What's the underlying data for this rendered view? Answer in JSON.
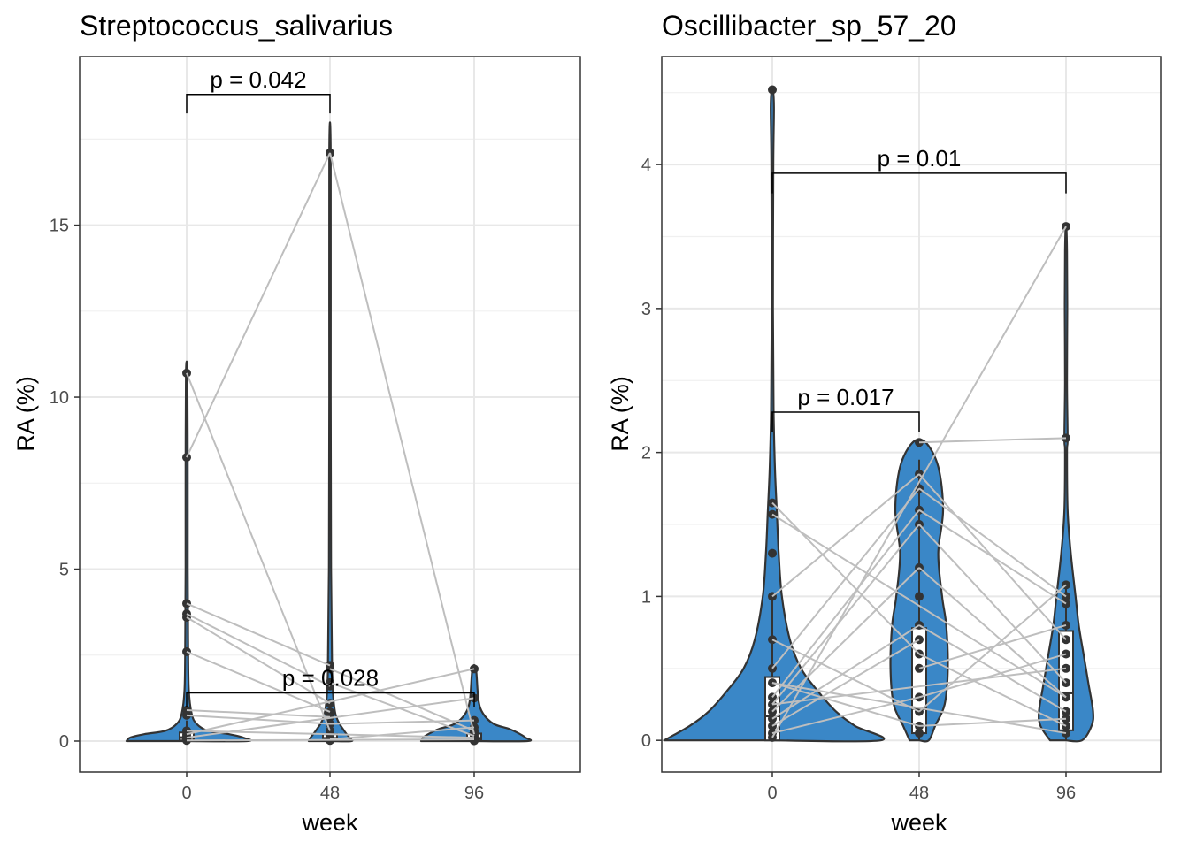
{
  "chart_data": [
    {
      "type": "violin",
      "title": "Streptococcus_salivarius",
      "xlabel": "week",
      "ylabel": "RA (%)",
      "categories": [
        "0",
        "48",
        "96"
      ],
      "xticks": [
        "0",
        "48",
        "96"
      ],
      "yticks": [
        "0",
        "5",
        "10",
        "15"
      ],
      "ylim": [
        -0.9,
        19.9
      ],
      "grid": true,
      "fill_color": "#3A87C7",
      "line_color": "#BEBEBE",
      "violin_widths": {
        "0": [
          [
            0.0,
            1.7
          ],
          [
            0.1,
            1.6
          ],
          [
            0.2,
            1.2
          ],
          [
            0.3,
            0.6
          ],
          [
            0.5,
            0.28
          ],
          [
            0.8,
            0.14
          ],
          [
            1.5,
            0.06
          ],
          [
            3,
            0.04
          ],
          [
            5,
            0.03
          ],
          [
            8,
            0.03
          ],
          [
            10.7,
            0.02
          ]
        ],
        "48": [
          [
            0.0,
            0.6
          ],
          [
            0.1,
            0.55
          ],
          [
            0.3,
            0.4
          ],
          [
            0.6,
            0.22
          ],
          [
            1.0,
            0.12
          ],
          [
            2.0,
            0.06
          ],
          [
            5,
            0.03
          ],
          [
            10,
            0.02
          ],
          [
            17.1,
            0.02
          ]
        ],
        "96": [
          [
            0.0,
            1.5
          ],
          [
            0.1,
            1.45
          ],
          [
            0.2,
            1.3
          ],
          [
            0.35,
            1.0
          ],
          [
            0.5,
            0.55
          ],
          [
            0.8,
            0.25
          ],
          [
            1.2,
            0.12
          ],
          [
            2.1,
            0.05
          ]
        ]
      },
      "points": {
        "0": [
          10.7,
          8.25,
          4.0,
          3.7,
          3.6,
          2.6,
          0.9,
          0.75,
          0.3,
          0.2,
          0.15,
          0.1,
          0.05,
          0.02
        ],
        "48": [
          17.1,
          2.2,
          2.1,
          1.7,
          1.6,
          1.1,
          0.85,
          0.7,
          0.5,
          0.3,
          0.2,
          0.1,
          0.05,
          0.02
        ],
        "96": [
          2.1,
          1.25,
          0.6,
          0.4,
          0.3,
          0.25,
          0.2,
          0.15,
          0.1,
          0.08,
          0.05,
          0.03,
          0.02,
          0.01
        ]
      },
      "paired_lines": [
        [
          10.7,
          0.3
        ],
        [
          8.25,
          17.1
        ],
        [
          4.0,
          2.2
        ],
        [
          3.7,
          1.6
        ],
        [
          3.6,
          1.1
        ],
        [
          2.6,
          0.85
        ],
        [
          0.9,
          0.7
        ],
        [
          0.75,
          0.5
        ],
        [
          17.1,
          0.2
        ],
        [
          2.1,
          0.3
        ],
        [
          1.7,
          0.15
        ],
        [
          0.5,
          0.6
        ],
        [
          0.2,
          2.1
        ],
        [
          0.1,
          1.25
        ],
        [
          0.3,
          0.1
        ],
        [
          0.05,
          0.4
        ],
        [
          0.02,
          0.05
        ]
      ],
      "paired_lines_pairs": [
        [
          "0",
          "48"
        ],
        [
          "0",
          "48"
        ],
        [
          "0",
          "48"
        ],
        [
          "0",
          "48"
        ],
        [
          "0",
          "48"
        ],
        [
          "0",
          "48"
        ],
        [
          "0",
          "48"
        ],
        [
          "0",
          "48"
        ],
        [
          "48",
          "96"
        ],
        [
          "48",
          "96"
        ],
        [
          "48",
          "96"
        ],
        [
          "48",
          "96"
        ],
        [
          "0",
          "96"
        ],
        [
          "0",
          "96"
        ],
        [
          "0",
          "96"
        ],
        [
          "48",
          "96"
        ],
        [
          "0",
          "96"
        ]
      ],
      "boxes": {
        "0": {
          "q1": 0.02,
          "median": 0.1,
          "q3": 0.25,
          "lower": 0,
          "upper": 0.6
        },
        "48": {
          "q1": 0.02,
          "median": 0.08,
          "q3": 0.2,
          "lower": 0,
          "upper": 0.5
        },
        "96": {
          "q1": 0.02,
          "median": 0.08,
          "q3": 0.22,
          "lower": 0,
          "upper": 0.5
        }
      },
      "comparisons": [
        {
          "groups": [
            "0",
            "48"
          ],
          "label": "p = 0.042",
          "y": 18.8,
          "tip": 0.55
        },
        {
          "groups": [
            "0",
            "96"
          ],
          "label": "p = 0.028",
          "y": 1.4,
          "tip": 0.4
        }
      ]
    },
    {
      "type": "violin",
      "title": "Oscillibacter_sp_57_20",
      "xlabel": "week",
      "ylabel": "RA (%)",
      "categories": [
        "0",
        "48",
        "96"
      ],
      "xticks": [
        "0",
        "48",
        "96"
      ],
      "yticks": [
        "0",
        "1",
        "2",
        "3",
        "4"
      ],
      "ylim": [
        -0.22,
        4.75
      ],
      "grid": true,
      "fill_color": "#3A87C7",
      "line_color": "#BEBEBE",
      "violin_widths": {
        "0": [
          [
            0.0,
            3.4
          ],
          [
            0.1,
            2.6
          ],
          [
            0.2,
            2.0
          ],
          [
            0.35,
            1.4
          ],
          [
            0.5,
            0.9
          ],
          [
            0.7,
            0.55
          ],
          [
            1.0,
            0.3
          ],
          [
            1.3,
            0.2
          ],
          [
            1.6,
            0.14
          ],
          [
            1.9,
            0.08
          ],
          [
            2.3,
            0.04
          ],
          [
            3.0,
            0.02
          ],
          [
            4.0,
            0.03
          ],
          [
            4.4,
            0.05
          ],
          [
            4.52,
            0.02
          ]
        ],
        "48": [
          [
            0.0,
            0.3
          ],
          [
            0.1,
            0.5
          ],
          [
            0.25,
            0.8
          ],
          [
            0.5,
            0.9
          ],
          [
            0.8,
            0.85
          ],
          [
            1.0,
            0.72
          ],
          [
            1.3,
            0.6
          ],
          [
            1.6,
            0.75
          ],
          [
            1.9,
            0.6
          ],
          [
            2.07,
            0.2
          ]
        ],
        "96": [
          [
            0.0,
            0.5
          ],
          [
            0.1,
            0.8
          ],
          [
            0.2,
            0.85
          ],
          [
            0.4,
            0.7
          ],
          [
            0.6,
            0.55
          ],
          [
            0.8,
            0.4
          ],
          [
            1.0,
            0.3
          ],
          [
            1.3,
            0.15
          ],
          [
            1.6,
            0.05
          ],
          [
            2.0,
            0.03
          ],
          [
            2.1,
            0.05
          ],
          [
            2.5,
            0.03
          ],
          [
            3.0,
            0.04
          ],
          [
            3.4,
            0.03
          ],
          [
            3.57,
            0.01
          ]
        ]
      },
      "points": {
        "0": [
          4.52,
          1.65,
          1.57,
          1.3,
          1.0,
          0.7,
          0.5,
          0.4,
          0.3,
          0.25,
          0.2,
          0.15,
          0.1,
          0.05,
          0.02
        ],
        "48": [
          2.07,
          1.85,
          1.75,
          1.6,
          1.5,
          1.2,
          1.0,
          0.8,
          0.7,
          0.6,
          0.5,
          0.3,
          0.2,
          0.1,
          0.05
        ],
        "96": [
          3.57,
          2.1,
          1.08,
          1.0,
          0.95,
          0.8,
          0.7,
          0.6,
          0.5,
          0.4,
          0.3,
          0.2,
          0.15,
          0.1,
          0.05
        ]
      },
      "paired_lines": [
        [
          1.0,
          1.85
        ],
        [
          0.5,
          1.75
        ],
        [
          0.3,
          1.6
        ],
        [
          0.25,
          1.5
        ],
        [
          0.2,
          1.2
        ],
        [
          0.15,
          0.8
        ],
        [
          0.1,
          0.7
        ],
        [
          0.05,
          0.3
        ],
        [
          0.7,
          0.2
        ],
        [
          0.4,
          0.1
        ],
        [
          1.65,
          0.6
        ],
        [
          2.07,
          2.1
        ],
        [
          1.85,
          0.7
        ],
        [
          1.75,
          1.0
        ],
        [
          1.6,
          0.95
        ],
        [
          1.5,
          0.4
        ],
        [
          1.2,
          0.3
        ],
        [
          0.8,
          0.2
        ],
        [
          0.6,
          0.1
        ],
        [
          0.5,
          0.8
        ],
        [
          0.3,
          0.6
        ],
        [
          0.2,
          1.08
        ],
        [
          0.1,
          0.15
        ],
        [
          0.02,
          3.57
        ],
        [
          0.25,
          0.5
        ],
        [
          0.4,
          0.05
        ],
        [
          1.57,
          0.3
        ]
      ],
      "paired_lines_pairs": [
        [
          "0",
          "48"
        ],
        [
          "0",
          "48"
        ],
        [
          "0",
          "48"
        ],
        [
          "0",
          "48"
        ],
        [
          "0",
          "48"
        ],
        [
          "0",
          "48"
        ],
        [
          "0",
          "48"
        ],
        [
          "0",
          "48"
        ],
        [
          "0",
          "48"
        ],
        [
          "0",
          "48"
        ],
        [
          "0",
          "48"
        ],
        [
          "48",
          "96"
        ],
        [
          "48",
          "96"
        ],
        [
          "48",
          "96"
        ],
        [
          "48",
          "96"
        ],
        [
          "48",
          "96"
        ],
        [
          "48",
          "96"
        ],
        [
          "48",
          "96"
        ],
        [
          "48",
          "96"
        ],
        [
          "48",
          "96"
        ],
        [
          "48",
          "96"
        ],
        [
          "48",
          "96"
        ],
        [
          "48",
          "96"
        ],
        [
          "0",
          "96"
        ],
        [
          "0",
          "96"
        ],
        [
          "0",
          "96"
        ],
        [
          "0",
          "96"
        ]
      ],
      "boxes": {
        "0": {
          "q1": 0.0,
          "median": 0.17,
          "q3": 0.44,
          "lower": 0,
          "upper": 1.0
        },
        "48": {
          "q1": 0.05,
          "median": 0.22,
          "q3": 0.78,
          "lower": 0,
          "upper": 1.95
        },
        "96": {
          "q1": 0.07,
          "median": 0.33,
          "q3": 0.76,
          "lower": 0,
          "upper": 1.08
        }
      },
      "comparisons": [
        {
          "groups": [
            "0",
            "96"
          ],
          "label": "p = 0.01",
          "y": 3.94,
          "tip": 0.14
        },
        {
          "groups": [
            "0",
            "48"
          ],
          "label": "p = 0.017",
          "y": 2.28,
          "tip": 0.14
        }
      ]
    }
  ]
}
